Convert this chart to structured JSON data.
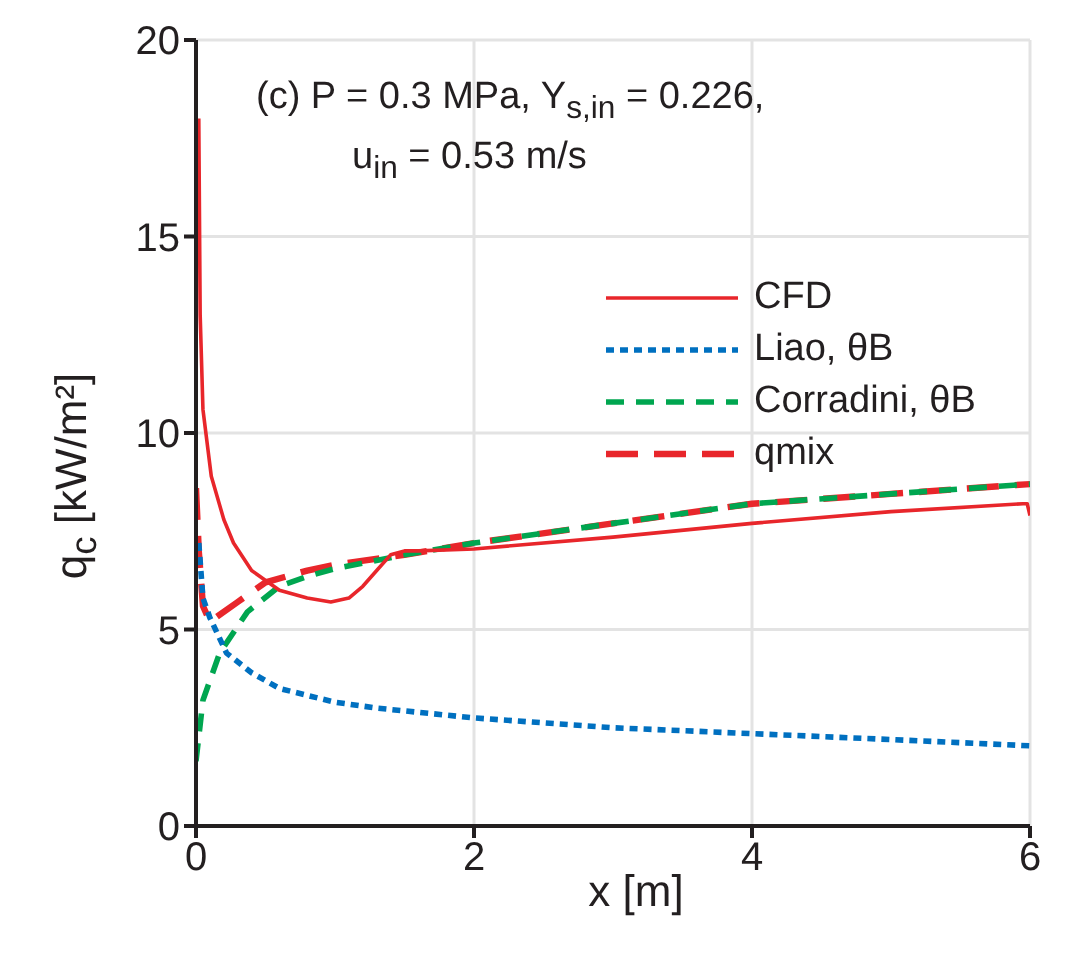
{
  "chart_data": {
    "type": "line",
    "xlabel": "x [m]",
    "ylabel": "q$_{c}$ [kW/m²]",
    "annotations": [
      "(c) P = 0.3 MPa, Y$_{s,in}$ = 0.226,",
      "u$_{in}$ = 0.53 m/s"
    ],
    "xlim": [
      0,
      6
    ],
    "xticks": [
      0,
      2,
      4,
      6
    ],
    "ylim": [
      0,
      20
    ],
    "yticks": [
      0,
      5,
      10,
      15,
      20
    ],
    "grid": true,
    "legend": "top right",
    "marker": "none",
    "series": [
      {
        "name": "CFD",
        "color": "#e8262b",
        "line_style": "solid",
        "x": [
          0.02,
          0.03,
          0.05,
          0.11,
          0.2,
          0.27,
          0.4,
          0.6,
          0.8,
          0.97,
          1.1,
          1.2,
          1.3,
          1.4,
          1.5,
          1.6,
          2,
          3,
          4,
          5,
          5.95,
          5.98,
          6
        ],
        "values": [
          18,
          13,
          10.6,
          8.9,
          7.8,
          7.2,
          6.5,
          6,
          5.8,
          5.7,
          5.8,
          6.1,
          6.5,
          6.9,
          7,
          7,
          7.05,
          7.35,
          7.7,
          8,
          8.2,
          8.2,
          7.9
        ]
      },
      {
        "name": "Liao, θB",
        "color": "#0070c0",
        "line_style": "dotted",
        "x": [
          0.02,
          0.05,
          0.1,
          0.22,
          0.4,
          0.6,
          1,
          1.3,
          2,
          3,
          4,
          5,
          6
        ],
        "values": [
          7.2,
          5.8,
          5.3,
          4.4,
          3.9,
          3.5,
          3.15,
          3,
          2.75,
          2.5,
          2.35,
          2.2,
          2.04
        ]
      },
      {
        "name": "Corradini, θB",
        "color": "#00a650",
        "line_style": "dashed",
        "x": [
          0,
          0.05,
          0.17,
          0.37,
          0.6,
          0.8,
          1,
          1.5,
          2,
          3,
          4,
          5,
          6
        ],
        "values": [
          1.65,
          3.2,
          4.4,
          5.45,
          6.1,
          6.35,
          6.55,
          6.9,
          7.2,
          7.7,
          8.2,
          8.45,
          8.7
        ]
      },
      {
        "name": "qmix",
        "color": "#e8262b",
        "line_style": "longdash",
        "x": [
          0,
          0.02,
          0.05,
          0.1,
          0.3,
          0.5,
          0.8,
          1,
          1.5,
          2,
          3,
          4,
          5,
          6
        ],
        "values": [
          8.6,
          7,
          5.6,
          5.2,
          5.7,
          6.2,
          6.5,
          6.65,
          6.9,
          7.2,
          7.7,
          8.2,
          8.45,
          8.7
        ]
      }
    ]
  }
}
